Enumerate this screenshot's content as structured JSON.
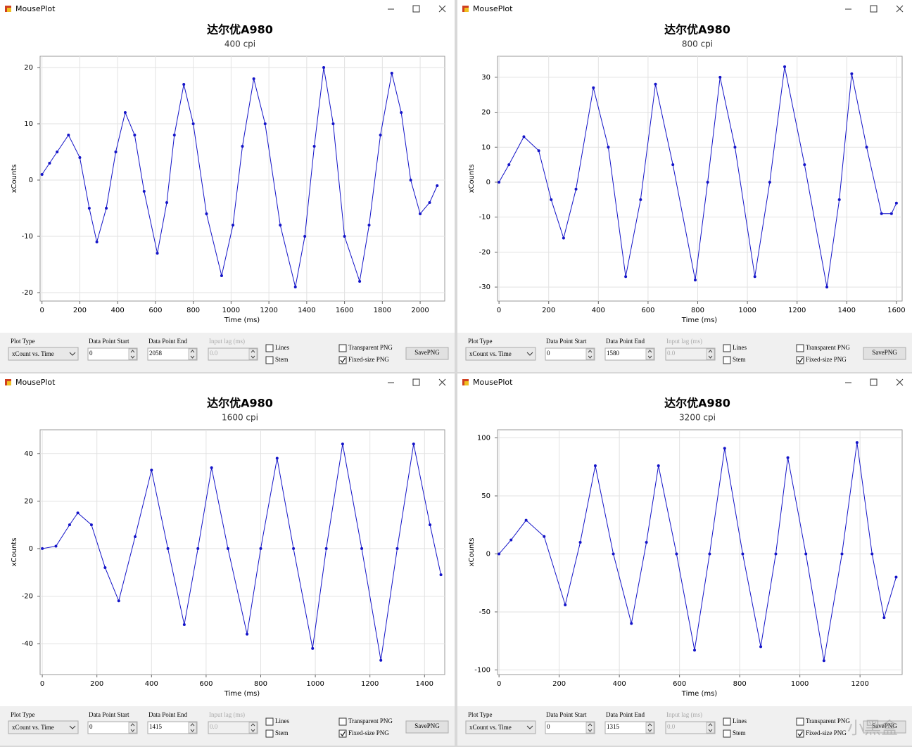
{
  "chart_data": [
    {
      "type": "line",
      "title": "达尔优A980",
      "subtitle": "400 cpi",
      "xlabel": "Time (ms)",
      "ylabel": "xCounts",
      "color": "#1414c8",
      "grid": true,
      "x": [
        0,
        40,
        80,
        140,
        200,
        250,
        290,
        340,
        390,
        440,
        490,
        540,
        610,
        660,
        700,
        750,
        800,
        870,
        950,
        1010,
        1060,
        1120,
        1180,
        1260,
        1340,
        1390,
        1440,
        1490,
        1540,
        1600,
        1680,
        1730,
        1790,
        1850,
        1900,
        1950,
        2000,
        2050,
        2090
      ],
      "values": [
        1,
        3,
        5,
        8,
        4,
        -5,
        -11,
        -5,
        5,
        12,
        8,
        -2,
        -13,
        -4,
        8,
        17,
        10,
        -6,
        -17,
        -8,
        6,
        18,
        10,
        -8,
        -19,
        -10,
        6,
        20,
        10,
        -10,
        -18,
        -8,
        8,
        19,
        12,
        0,
        -6,
        -4,
        -1
      ],
      "xlim": [
        -10,
        2130
      ],
      "ylim": [
        -21.5,
        22
      ],
      "xticks": [
        0,
        200,
        400,
        600,
        800,
        1000,
        1200,
        1400,
        1600,
        1800,
        2000
      ],
      "yticks": [
        -20,
        -10,
        0,
        10,
        20
      ]
    },
    {
      "type": "line",
      "title": "达尔优A980",
      "subtitle": "800 cpi",
      "xlabel": "Time (ms)",
      "ylabel": "xCounts",
      "color": "#1414c8",
      "grid": true,
      "x": [
        0,
        40,
        100,
        160,
        210,
        260,
        310,
        380,
        440,
        510,
        570,
        630,
        700,
        790,
        840,
        890,
        950,
        1030,
        1090,
        1150,
        1230,
        1320,
        1370,
        1420,
        1480,
        1540,
        1580,
        1600
      ],
      "values": [
        0,
        5,
        13,
        9,
        -5,
        -16,
        -2,
        27,
        10,
        -27,
        -5,
        28,
        5,
        -28,
        0,
        30,
        10,
        -27,
        0,
        33,
        5,
        -30,
        -5,
        31,
        10,
        -9,
        -9,
        -6
      ],
      "xlim": [
        -6,
        1623
      ],
      "ylim": [
        -34,
        36
      ],
      "xticks": [
        0,
        200,
        400,
        600,
        800,
        1000,
        1200,
        1400,
        1600
      ],
      "yticks": [
        -30,
        -20,
        -10,
        0,
        10,
        20,
        30
      ]
    },
    {
      "type": "line",
      "title": "达尔优A980",
      "subtitle": "1600 cpi",
      "xlabel": "Time (ms)",
      "ylabel": "xCounts",
      "color": "#1414c8",
      "grid": true,
      "x": [
        0,
        50,
        100,
        130,
        180,
        230,
        280,
        340,
        400,
        460,
        520,
        570,
        620,
        680,
        750,
        800,
        860,
        920,
        990,
        1040,
        1100,
        1170,
        1240,
        1300,
        1360,
        1420,
        1460
      ],
      "values": [
        0,
        1,
        10,
        15,
        10,
        -8,
        -22,
        5,
        33,
        0,
        -32,
        0,
        34,
        0,
        -36,
        0,
        38,
        0,
        -42,
        0,
        44,
        0,
        -47,
        0,
        44,
        10,
        -11
      ],
      "xlim": [
        -8,
        1474
      ],
      "ylim": [
        -53,
        50
      ],
      "xticks": [
        0,
        200,
        400,
        600,
        800,
        1000,
        1200,
        1400
      ],
      "yticks": [
        -40,
        -20,
        0,
        20,
        40
      ]
    },
    {
      "type": "line",
      "title": "达尔优A980",
      "subtitle": "3200 cpi",
      "xlabel": "Time (ms)",
      "ylabel": "xCounts",
      "color": "#1414c8",
      "grid": true,
      "x": [
        0,
        40,
        90,
        150,
        220,
        270,
        320,
        380,
        440,
        490,
        530,
        590,
        650,
        700,
        750,
        810,
        870,
        920,
        960,
        1020,
        1080,
        1140,
        1190,
        1240,
        1280,
        1320
      ],
      "values": [
        0,
        12,
        29,
        15,
        -44,
        10,
        76,
        0,
        -60,
        10,
        76,
        0,
        -83,
        0,
        91,
        0,
        -80,
        0,
        83,
        0,
        -92,
        0,
        96,
        0,
        -55,
        -20
      ],
      "xlim": [
        -5,
        1340
      ],
      "ylim": [
        -104,
        107
      ],
      "xticks": [
        0,
        200,
        400,
        600,
        800,
        1000,
        1200
      ],
      "yticks": [
        -100,
        -50,
        0,
        50,
        100
      ]
    }
  ],
  "windows": [
    {
      "title": "MousePlot",
      "plot_type_label": "Plot Type",
      "plot_type": "xCount vs. Time",
      "start_label": "Data Point Start",
      "start": "0",
      "end_label": "Data Point End",
      "end": "2058",
      "lag_label": "Input lag (ms)",
      "lag": "0.0",
      "lines": {
        "label": "Lines",
        "checked": false
      },
      "stem": {
        "label": "Stem",
        "checked": false
      },
      "transparent": {
        "label": "Transparent PNG",
        "checked": false
      },
      "fixed": {
        "label": "Fixed-size PNG",
        "checked": true
      },
      "save": "SavePNG"
    },
    {
      "title": "MousePlot",
      "plot_type_label": "Plot Type",
      "plot_type": "xCount vs. Time",
      "start_label": "Data Point Start",
      "start": "0",
      "end_label": "Data Point End",
      "end": "1580",
      "lag_label": "Input lag (ms)",
      "lag": "0.0",
      "lines": {
        "label": "Lines",
        "checked": false
      },
      "stem": {
        "label": "Stem",
        "checked": false
      },
      "transparent": {
        "label": "Transparent PNG",
        "checked": false
      },
      "fixed": {
        "label": "Fixed-size PNG",
        "checked": true
      },
      "save": "SavePNG"
    },
    {
      "title": "MousePlot",
      "plot_type_label": "Plot Type",
      "plot_type": "xCount vs. Time",
      "start_label": "Data Point Start",
      "start": "0",
      "end_label": "Data Point End",
      "end": "1415",
      "lag_label": "Input lag (ms)",
      "lag": "0.0",
      "lines": {
        "label": "Lines",
        "checked": false
      },
      "stem": {
        "label": "Stem",
        "checked": false
      },
      "transparent": {
        "label": "Transparent PNG",
        "checked": false
      },
      "fixed": {
        "label": "Fixed-size PNG",
        "checked": true
      },
      "save": "SavePNG"
    },
    {
      "title": "MousePlot",
      "plot_type_label": "Plot Type",
      "plot_type": "xCount vs. Time",
      "start_label": "Data Point Start",
      "start": "0",
      "end_label": "Data Point End",
      "end": "1315",
      "lag_label": "Input lag (ms)",
      "lag": "0.0",
      "lines": {
        "label": "Lines",
        "checked": false
      },
      "stem": {
        "label": "Stem",
        "checked": false
      },
      "transparent": {
        "label": "Transparent PNG",
        "checked": false
      },
      "fixed": {
        "label": "Fixed-size PNG",
        "checked": true
      },
      "save": "SavePNG"
    }
  ],
  "watermark": "小黑盒"
}
